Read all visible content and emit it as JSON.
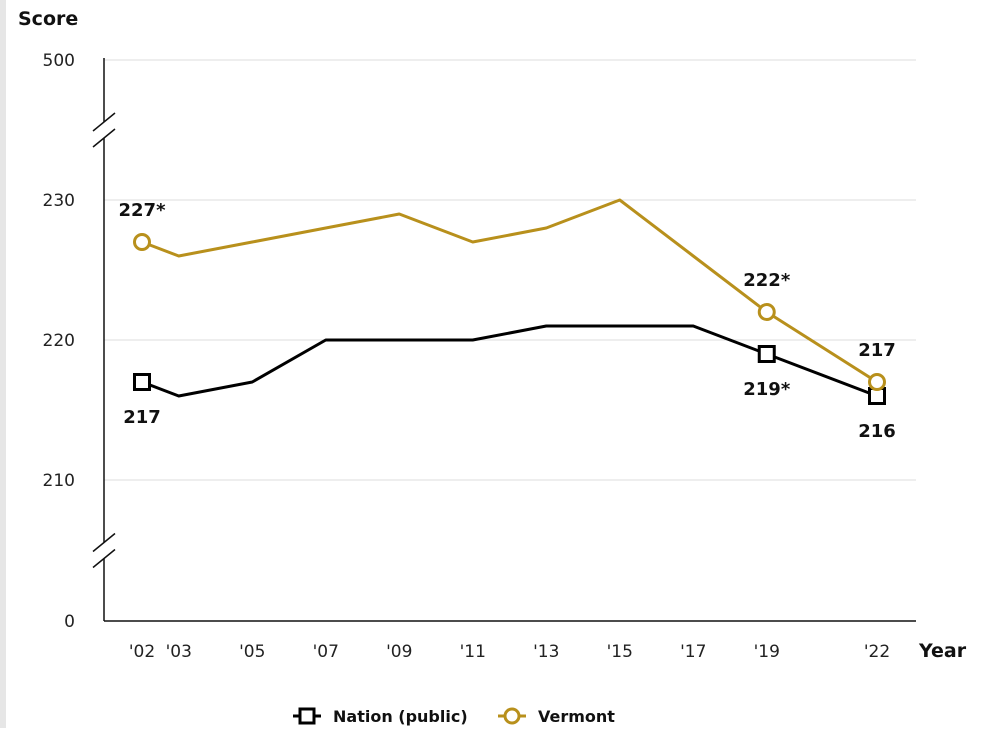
{
  "chart_data": {
    "type": "line",
    "ylabel": "Score",
    "xlabel": "Year",
    "y_ticks": [
      {
        "value": 0,
        "label": "0"
      },
      {
        "value": 210,
        "label": "210"
      },
      {
        "value": 220,
        "label": "220"
      },
      {
        "value": 230,
        "label": "230"
      },
      {
        "value": 500,
        "label": "500"
      }
    ],
    "y_axis_breaks": [
      [
        0,
        210
      ],
      [
        230,
        500
      ]
    ],
    "categories": [
      "'02",
      "'03",
      "'05",
      "'07",
      "'09",
      "'11",
      "'13",
      "'15",
      "'17",
      "'19",
      "'22"
    ],
    "x": [
      2002,
      2003,
      2005,
      2007,
      2009,
      2011,
      2013,
      2015,
      2017,
      2019,
      2022
    ],
    "series": [
      {
        "name": "Nation (public)",
        "color": "#000000",
        "marker": "square",
        "values": [
          217,
          216,
          217,
          220,
          220,
          220,
          221,
          221,
          221,
          219,
          216
        ],
        "marked_points": [
          {
            "x": 2002,
            "label": "217",
            "position": "below"
          },
          {
            "x": 2019,
            "label": "219*",
            "position": "below"
          },
          {
            "x": 2022,
            "label": "216",
            "position": "below"
          }
        ]
      },
      {
        "name": "Vermont",
        "color": "#b8901c",
        "marker": "circle",
        "values": [
          227,
          226,
          227,
          228,
          229,
          227,
          228,
          230,
          226,
          222,
          217
        ],
        "marked_points": [
          {
            "x": 2002,
            "label": "227*",
            "position": "above"
          },
          {
            "x": 2019,
            "label": "222*",
            "position": "above"
          },
          {
            "x": 2022,
            "label": "217",
            "position": "above"
          }
        ]
      }
    ],
    "grid": true,
    "legend": "bottom-center"
  }
}
